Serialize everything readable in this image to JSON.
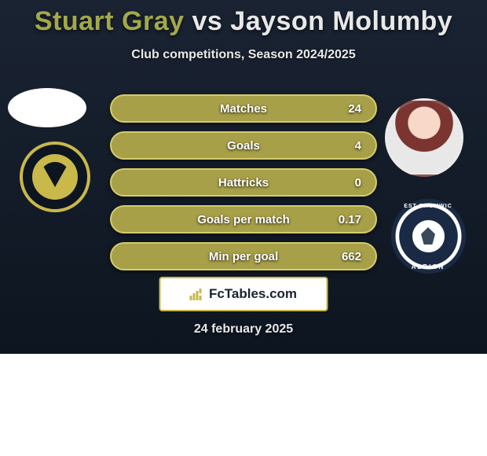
{
  "title": {
    "player1": "Stuart Gray",
    "vs": "vs",
    "player2": "Jayson Molumby"
  },
  "subtitle": "Club competitions, Season 2024/2025",
  "stats": [
    {
      "label": "Matches",
      "value": "24"
    },
    {
      "label": "Goals",
      "value": "4"
    },
    {
      "label": "Hattricks",
      "value": "0"
    },
    {
      "label": "Goals per match",
      "value": "0.17"
    },
    {
      "label": "Min per goal",
      "value": "662"
    }
  ],
  "branding": {
    "site": "FcTables.com"
  },
  "date": "24 february 2025",
  "crest_text": {
    "wba_top": "EST BROMWIC",
    "wba_bot": "ALBION"
  },
  "colors": {
    "pill_bg": "#a8a048",
    "pill_border": "#d4cc6a",
    "accent": "#c9b84a",
    "bg_top": "#1a2332",
    "bg_bot": "#0d1520"
  }
}
